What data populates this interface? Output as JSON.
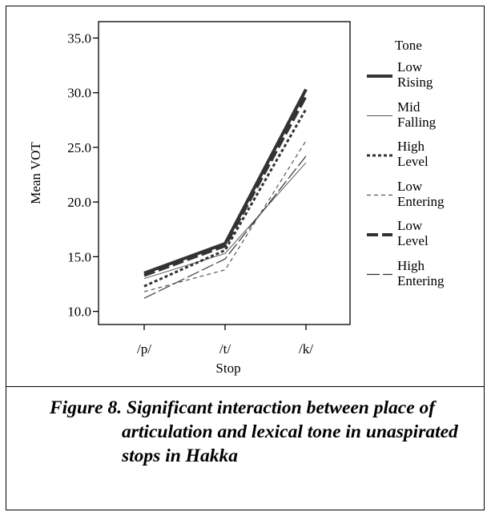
{
  "chart_data": {
    "type": "line",
    "x_label": "Stop",
    "y_label": "Mean VOT",
    "categories": [
      "/p/",
      "/t/",
      "/k/"
    ],
    "ylim": [
      8.8,
      36.5
    ],
    "yticks": [
      {
        "value": 10,
        "label": "10.0"
      },
      {
        "value": 15,
        "label": "15.0"
      },
      {
        "value": 20,
        "label": "20.0"
      },
      {
        "value": 25,
        "label": "25.0"
      },
      {
        "value": 30,
        "label": "30.0"
      },
      {
        "value": 35,
        "label": "35.0"
      }
    ],
    "legend_title": "Tone",
    "series": [
      {
        "name": "Low Rising",
        "color": "#333333",
        "values": [
          13.5,
          16.2,
          30.3
        ]
      },
      {
        "name": "Mid Falling",
        "color": "#555555",
        "values": [
          13.0,
          15.3,
          23.6
        ]
      },
      {
        "name": "High Level",
        "color": "#333333",
        "values": [
          12.3,
          15.6,
          28.5
        ]
      },
      {
        "name": "Low Entering",
        "color": "#555555",
        "values": [
          11.8,
          13.8,
          25.6
        ]
      },
      {
        "name": "Low Level",
        "color": "#333333",
        "values": [
          13.3,
          16.0,
          29.7
        ]
      },
      {
        "name": "High Entering",
        "color": "#333333",
        "values": [
          11.2,
          14.8,
          24.2
        ]
      }
    ]
  },
  "caption": "Figure 8. Significant interaction between place of articulation and lexical tone in unaspirated stops in Hakka"
}
